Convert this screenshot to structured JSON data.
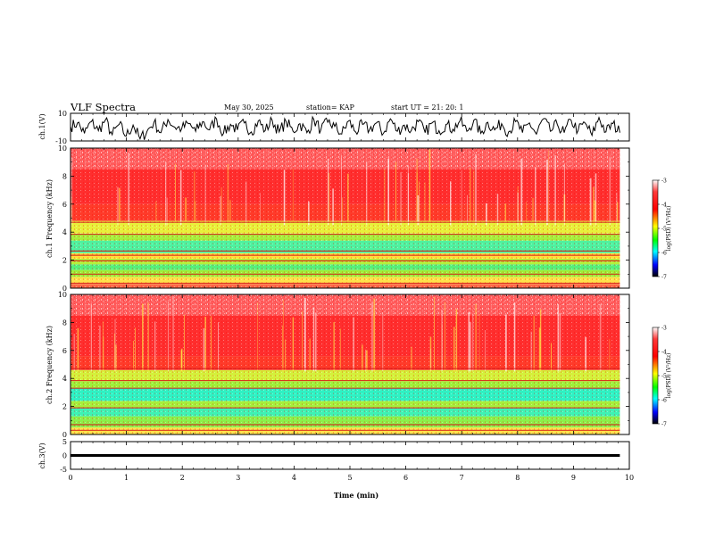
{
  "header": {
    "title": "VLF Spectra",
    "date": "May 30, 2025",
    "station": "station= KAP",
    "start": "start UT = 21: 20: 1"
  },
  "colorbar": {
    "label": "log(PSD) (V²/Hz)",
    "ticks": [
      "-3",
      "-4",
      "-5",
      "-6",
      "-7"
    ],
    "gradient": [
      "#ffffff",
      "#ff3b3b",
      "#ff0000",
      "#ffff00",
      "#00ff00",
      "#00ffff",
      "#0000ff",
      "#000000"
    ]
  },
  "chart_data": [
    {
      "type": "line",
      "name": "ch1-waveform",
      "ylabel": "ch.1(V)",
      "ylim": [
        -10,
        10
      ],
      "ytick_labels": [
        "10",
        "-10"
      ],
      "xlim": [
        0,
        10
      ],
      "y": [
        0.5,
        3.0,
        -4.5,
        4.0,
        -2.5,
        5.0,
        -5.5,
        2.0,
        -6.5,
        1.5,
        -8.5,
        -3.0,
        3.5,
        -4.0,
        5.5,
        0.0,
        -1.0,
        2.5,
        -3.0,
        4.0,
        -2.0,
        6.0,
        -4.5,
        2.0,
        -2.0,
        3.0,
        -3.5,
        4.5,
        -2.5,
        5.0,
        -3.5,
        4.0,
        -3.0,
        2.5,
        -4.0,
        5.5,
        -2.0,
        3.5,
        0.5,
        -5.0,
        4.5,
        -3.5,
        2.0,
        -2.0,
        3.0,
        -4.5,
        6.0,
        -3.0,
        1.5,
        -2.5,
        4.0,
        -4.0,
        3.0,
        -2.5,
        2.0,
        -1.5,
        4.5,
        -3.0,
        5.0,
        -4.5,
        3.5,
        -2.0,
        2.5,
        -3.5,
        4.0,
        -4.0,
        3.0,
        -5.0,
        6.0,
        -3.0,
        2.0,
        -4.0,
        5.0,
        -2.5,
        3.0,
        -6.0,
        7.0,
        -3.5,
        2.5,
        -4.0
      ]
    },
    {
      "type": "heatmap",
      "name": "ch1-spectrogram",
      "ylabel": "ch.1 Frequency (kHz)",
      "ylim": [
        0,
        10
      ],
      "xlim": [
        0,
        10
      ],
      "ytick_labels": [
        "0",
        "2",
        "4",
        "6",
        "8",
        "10"
      ],
      "bands": [
        {
          "from": 0.0,
          "to": 0.3,
          "color": "#ff6a4a"
        },
        {
          "from": 0.3,
          "to": 0.8,
          "color": "#ffe24a"
        },
        {
          "from": 0.8,
          "to": 1.3,
          "color": "#9ef03a"
        },
        {
          "from": 1.3,
          "to": 1.7,
          "color": "#55f07a"
        },
        {
          "from": 1.7,
          "to": 2.1,
          "color": "#b4f03a"
        },
        {
          "from": 2.1,
          "to": 2.5,
          "color": "#ffe03a"
        },
        {
          "from": 2.5,
          "to": 3.4,
          "color": "#4ef2a0"
        },
        {
          "from": 3.4,
          "to": 3.9,
          "color": "#a6ef3c"
        },
        {
          "from": 3.9,
          "to": 4.8,
          "color": "#e8f03a"
        },
        {
          "from": 4.8,
          "to": 6.0,
          "color": "#ff3b2a"
        },
        {
          "from": 6.0,
          "to": 8.5,
          "color": "#ff2e2e"
        },
        {
          "from": 8.5,
          "to": 10.0,
          "color": "#ff5c5c"
        }
      ],
      "lines": [
        0.35,
        1.0,
        1.95,
        2.35,
        2.65,
        3.85,
        4.7
      ]
    },
    {
      "type": "heatmap",
      "name": "ch2-spectrogram",
      "ylabel": "ch.2 Frequency (kHz)",
      "ylim": [
        0,
        10
      ],
      "xlim": [
        0,
        10
      ],
      "ytick_labels": [
        "0",
        "2",
        "4",
        "6",
        "8",
        "10"
      ],
      "bands": [
        {
          "from": 0.0,
          "to": 0.5,
          "color": "#ffe24a"
        },
        {
          "from": 0.5,
          "to": 1.3,
          "color": "#8cf04a"
        },
        {
          "from": 1.3,
          "to": 1.9,
          "color": "#3ef2b4"
        },
        {
          "from": 1.9,
          "to": 2.4,
          "color": "#a6ef3c"
        },
        {
          "from": 2.4,
          "to": 3.3,
          "color": "#2ef2c4"
        },
        {
          "from": 3.3,
          "to": 3.8,
          "color": "#9ef03a"
        },
        {
          "from": 3.8,
          "to": 4.6,
          "color": "#d4f03a"
        },
        {
          "from": 4.6,
          "to": 5.6,
          "color": "#ff3b2a"
        },
        {
          "from": 5.6,
          "to": 8.5,
          "color": "#ff2e2e"
        },
        {
          "from": 8.5,
          "to": 10.0,
          "color": "#ff5c5c"
        }
      ],
      "lines": [
        0.3,
        0.7,
        1.9,
        3.3,
        3.85,
        4.7
      ]
    },
    {
      "type": "line",
      "name": "ch3-waveform",
      "ylabel": "ch.3(V)",
      "ylim": [
        -5,
        5
      ],
      "ytick_labels": [
        "5",
        "0",
        "-5"
      ],
      "xlim": [
        0,
        10
      ],
      "level": 0,
      "thickness_v": 1.0
    }
  ],
  "xaxis": {
    "label": "Time (min)",
    "ticks": [
      "0",
      "1",
      "2",
      "3",
      "4",
      "5",
      "6",
      "7",
      "8",
      "9",
      "10"
    ],
    "data_end": 9.83
  }
}
